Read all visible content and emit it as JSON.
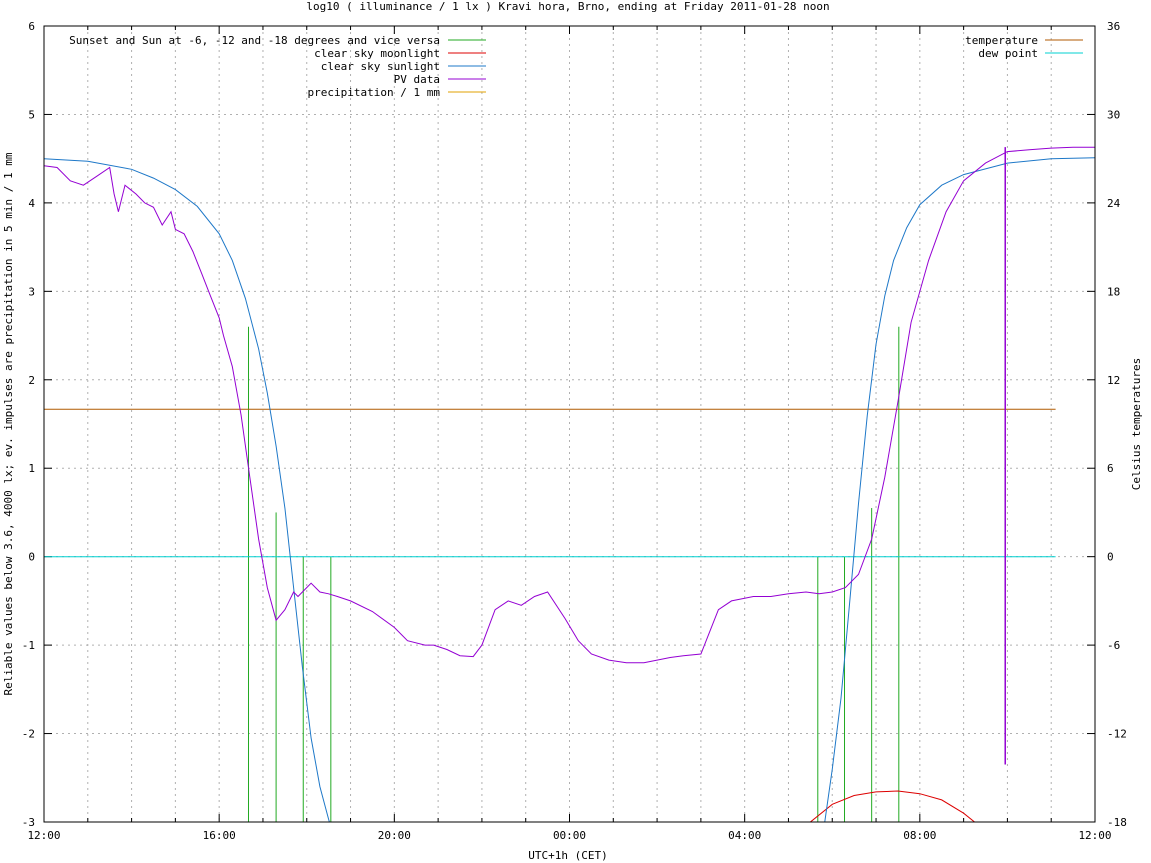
{
  "chart_data": {
    "type": "line",
    "title": "log10 ( illuminance / 1 lx ) Kravi hora, Brno, ending at Friday 2011-01-28 noon",
    "xlabel": "UTC+1h (CET)",
    "ylabel": "Reliable values below 3.6, 4000 lx; ev. impulses are precipitation in 5 min / 1 mm",
    "y2label": "Celsius temperatures",
    "x_tick_labels": [
      "12:00",
      "16:00",
      "20:00",
      "00:00",
      "04:00",
      "08:00",
      "12:00"
    ],
    "xlim_hours": [
      0,
      24
    ],
    "ylim": [
      -3,
      6
    ],
    "y2lim": [
      -18,
      36
    ],
    "y_ticks": [
      -3,
      -2,
      -1,
      0,
      1,
      2,
      3,
      4,
      5,
      6
    ],
    "y2_ticks": [
      -18,
      -12,
      -6,
      0,
      6,
      12,
      18,
      24,
      30,
      36
    ],
    "grid": true,
    "legend_left": [
      {
        "name": "Sunset and Sun at -6, -12 and -18 degrees and vice versa",
        "color": "#22aa22"
      },
      {
        "name": "clear sky moonlight",
        "color": "#dd0000"
      },
      {
        "name": "clear sky sunlight",
        "color": "#1e78c8"
      },
      {
        "name": "PV data",
        "color": "#9400d3"
      },
      {
        "name": "precipitation / 1 mm",
        "color": "#e0a000"
      }
    ],
    "legend_right": [
      {
        "name": "temperature",
        "color": "#b05a00"
      },
      {
        "name": "dew point",
        "color": "#00d0d0"
      }
    ],
    "sun_events_hours": [
      4.67,
      5.3,
      5.92,
      6.55,
      17.67,
      18.28,
      18.9,
      19.52
    ],
    "series": {
      "clear_sky_sunlight": {
        "x": [
          0,
          1,
          2,
          2.5,
          3,
          3.5,
          4,
          4.3,
          4.6,
          4.9,
          5.1,
          5.3,
          5.5,
          5.7,
          5.9,
          6.1,
          6.3,
          6.5,
          6.7,
          6.9,
          17.6,
          17.8,
          18.0,
          18.2,
          18.4,
          18.6,
          18.8,
          19.0,
          19.2,
          19.4,
          19.7,
          20.0,
          20.5,
          21.0,
          22.0,
          23.0,
          24.0
        ],
        "y": [
          4.5,
          4.47,
          4.38,
          4.28,
          4.15,
          3.96,
          3.65,
          3.35,
          2.92,
          2.35,
          1.85,
          1.25,
          0.55,
          -0.35,
          -1.25,
          -2.05,
          -2.6,
          -2.97,
          -3.3,
          -3.7,
          -3.7,
          -3.1,
          -2.4,
          -1.6,
          -0.5,
          0.6,
          1.6,
          2.4,
          2.95,
          3.35,
          3.72,
          3.98,
          4.2,
          4.32,
          4.45,
          4.5,
          4.51
        ]
      },
      "clear_sky_moonlight": {
        "x": [
          17.0,
          17.5,
          18.0,
          18.5,
          19.0,
          19.5,
          20.0,
          20.5,
          21.0,
          21.5,
          22.0
        ],
        "y": [
          -3.4,
          -3.0,
          -2.8,
          -2.7,
          -2.66,
          -2.65,
          -2.68,
          -2.75,
          -2.9,
          -3.1,
          -3.5
        ]
      },
      "pv_data": {
        "x": [
          0,
          0.3,
          0.6,
          0.9,
          1.2,
          1.5,
          1.6,
          1.7,
          1.85,
          2.1,
          2.3,
          2.5,
          2.7,
          2.9,
          3.0,
          3.2,
          3.4,
          3.6,
          3.8,
          4.0,
          4.1,
          4.3,
          4.5,
          4.7,
          4.9,
          5.1,
          5.3,
          5.5,
          5.7,
          5.8,
          5.9,
          6.1,
          6.3,
          6.5,
          6.7,
          7.0,
          7.5,
          8.0,
          8.3,
          8.7,
          8.9,
          9.2,
          9.5,
          9.8,
          10.0,
          10.3,
          10.6,
          10.9,
          11.2,
          11.5,
          11.9,
          12.2,
          12.5,
          12.9,
          13.3,
          13.7,
          14.0,
          14.3,
          14.6,
          15.0,
          15.4,
          15.7,
          15.9,
          16.0,
          16.2,
          16.6,
          17.0,
          17.4,
          17.7,
          18.0,
          18.3,
          18.6,
          18.9,
          19.2,
          19.5,
          19.8,
          20.2,
          20.6,
          21.0,
          21.5,
          22.0,
          22.5,
          23.0,
          23.5,
          24.0
        ],
        "y": [
          4.42,
          4.4,
          4.25,
          4.2,
          4.3,
          4.4,
          4.1,
          3.9,
          4.2,
          4.1,
          4.0,
          3.95,
          3.75,
          3.9,
          3.7,
          3.65,
          3.45,
          3.2,
          2.95,
          2.7,
          2.5,
          2.15,
          1.6,
          0.9,
          0.2,
          -0.35,
          -0.72,
          -0.6,
          -0.4,
          -0.45,
          -0.4,
          -0.3,
          -0.4,
          -0.42,
          -0.45,
          -0.5,
          -0.62,
          -0.8,
          -0.95,
          -1.0,
          -1.0,
          -1.05,
          -1.12,
          -1.13,
          -1.0,
          -0.6,
          -0.5,
          -0.55,
          -0.45,
          -0.4,
          -0.7,
          -0.95,
          -1.1,
          -1.17,
          -1.2,
          -1.2,
          -1.17,
          -1.14,
          -1.12,
          -1.1,
          -0.6,
          -0.5,
          -0.48,
          -0.47,
          -0.45,
          -0.45,
          -0.42,
          -0.4,
          -0.42,
          -0.4,
          -0.35,
          -0.2,
          0.2,
          0.9,
          1.75,
          2.65,
          3.35,
          3.9,
          4.25,
          4.45,
          4.58,
          4.6,
          4.62,
          4.63,
          4.63
        ]
      },
      "temperature_c": {
        "x": [
          0,
          23.1
        ],
        "y": [
          10.0,
          10.0
        ]
      },
      "dew_point_c": {
        "x": [
          0,
          23.1
        ],
        "y": [
          0,
          0
        ]
      }
    },
    "pv_spike_hours": 21.95
  }
}
